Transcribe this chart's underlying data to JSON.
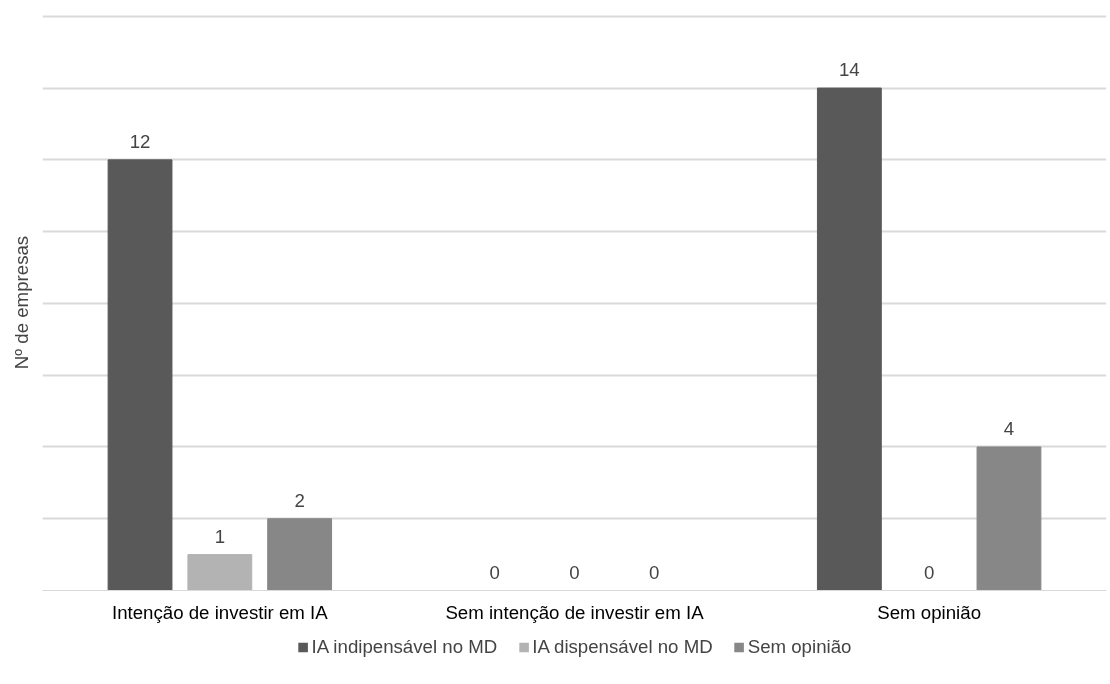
{
  "chart_data": {
    "type": "bar",
    "ylabel": "Nº de empresas",
    "categories": [
      "Intenção de investir em IA",
      "Sem intenção de investir em IA",
      "Sem opinião"
    ],
    "series": [
      {
        "name": "IA indipensável no MD",
        "color": "#595959",
        "values": [
          12,
          0,
          14
        ]
      },
      {
        "name": "IA dispensável no MD",
        "color": "#b3b3b3",
        "values": [
          1,
          0,
          0
        ]
      },
      {
        "name": "Sem opinião",
        "color": "#878787",
        "values": [
          2,
          0,
          4
        ]
      }
    ],
    "tick_labels": "x",
    "grid": "y",
    "data_labels": true,
    "legend": "bottom"
  }
}
